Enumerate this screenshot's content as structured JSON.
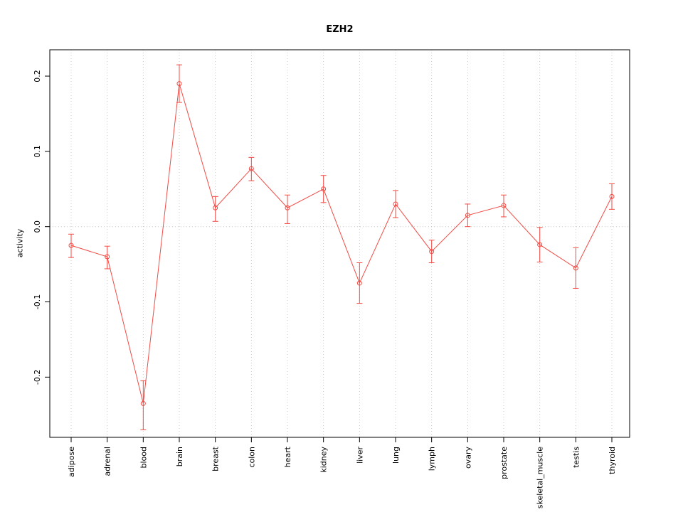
{
  "title": "EZH2",
  "chart_data": {
    "type": "line",
    "title": "EZH2",
    "xlabel": "",
    "ylabel": "activity",
    "legend_position": "none",
    "grid": "dotted vertical gridline at each category; dotted horizontal reference line at 0",
    "series_color": "#f14b45",
    "grid_color": "#c8c8c8",
    "axis_color": "#000000",
    "reference_line_y": 0,
    "ylim": [
      -0.28,
      0.235
    ],
    "y_ticks": [
      "-0.2",
      "-0.1",
      "0.0",
      "0.1",
      "0.2"
    ],
    "y_tick_values": [
      -0.2,
      -0.1,
      0.0,
      0.1,
      0.2
    ],
    "categories": [
      "adipose",
      "adrenal",
      "blood",
      "brain",
      "breast",
      "colon",
      "heart",
      "kidney",
      "liver",
      "lung",
      "lymph",
      "ovary",
      "prostate",
      "skeletal_muscle",
      "testis",
      "thyroid"
    ],
    "values": [
      -0.025,
      -0.04,
      -0.235,
      0.19,
      0.025,
      0.077,
      0.025,
      0.05,
      -0.075,
      0.03,
      -0.033,
      0.015,
      0.028,
      -0.024,
      -0.055,
      0.04
    ],
    "error_lower": [
      -0.041,
      -0.056,
      -0.27,
      0.165,
      0.007,
      0.061,
      0.004,
      0.032,
      -0.102,
      0.012,
      -0.048,
      0.0,
      0.013,
      -0.047,
      -0.082,
      0.023
    ],
    "error_upper": [
      -0.01,
      -0.026,
      -0.205,
      0.215,
      0.04,
      0.092,
      0.042,
      0.068,
      -0.048,
      0.048,
      -0.018,
      0.03,
      0.042,
      -0.001,
      -0.028,
      0.057
    ]
  }
}
